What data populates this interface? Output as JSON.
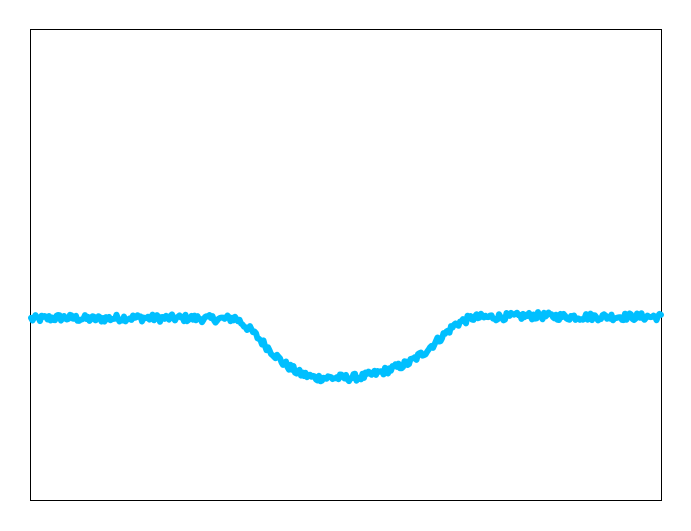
{
  "chart_data": {
    "type": "line",
    "title": "",
    "xlabel": "",
    "ylabel": "",
    "xlim": [
      0,
      100
    ],
    "ylim": [
      0,
      1
    ],
    "grid": false,
    "axis_ticks_shown": false,
    "series": [
      {
        "color": "#00bfff",
        "x": [
          0,
          5,
          10,
          15,
          20,
          25,
          30,
          32.5,
          35,
          37.5,
          40,
          42.5,
          45,
          47.5,
          50,
          52.5,
          55,
          57.5,
          60,
          62.5,
          65,
          67.5,
          70,
          72.5,
          75,
          80,
          85,
          90,
          95,
          100
        ],
        "y": [
          0.385,
          0.388,
          0.385,
          0.388,
          0.387,
          0.387,
          0.385,
          0.387,
          0.36,
          0.325,
          0.292,
          0.27,
          0.26,
          0.26,
          0.26,
          0.262,
          0.27,
          0.28,
          0.292,
          0.315,
          0.345,
          0.375,
          0.388,
          0.389,
          0.39,
          0.392,
          0.39,
          0.39,
          0.39,
          0.39
        ]
      }
    ]
  }
}
